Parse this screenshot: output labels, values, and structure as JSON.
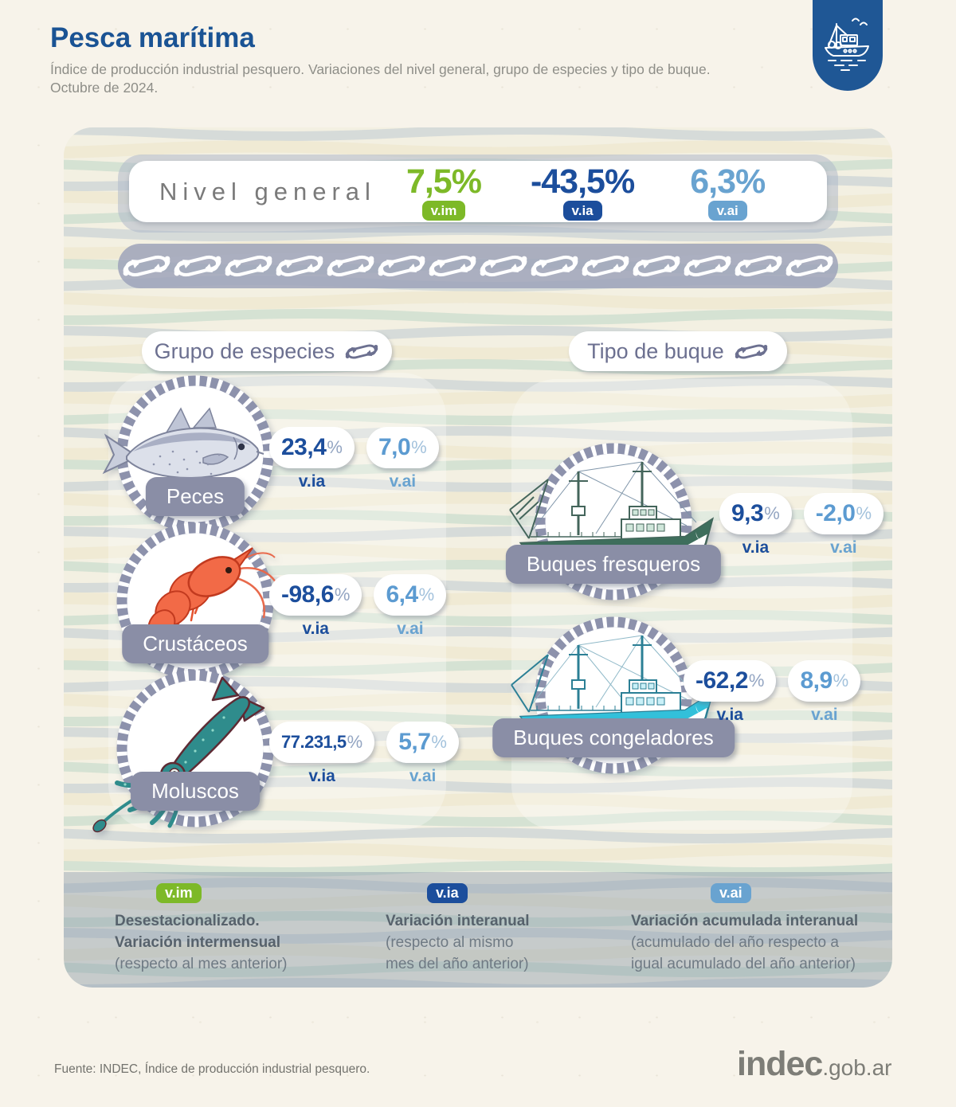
{
  "header": {
    "title": "Pesca marítima",
    "subtitle_line1": "Índice de producción industrial pesquero. Variaciones del nivel general, grupo de especies y tipo de buque.",
    "subtitle_line2": "Octubre de 2024."
  },
  "nivel_general": {
    "label": "Nivel general",
    "values": [
      {
        "value": "7,5%",
        "tag": "v.im"
      },
      {
        "value": "-43,5%",
        "tag": "v.ia"
      },
      {
        "value": "6,3%",
        "tag": "v.ai"
      }
    ]
  },
  "sections": {
    "species": {
      "title": "Grupo de especies"
    },
    "vessels": {
      "title": "Tipo de buque"
    }
  },
  "percent": "%",
  "tags": {
    "vim": "v.im",
    "via": "v.ia",
    "vai": "v.ai"
  },
  "species": {
    "items": [
      {
        "label": "Peces",
        "via": "23,4",
        "vai": "7,0"
      },
      {
        "label": "Crustáceos",
        "via": "-98,6",
        "vai": "6,4"
      },
      {
        "label": "Moluscos",
        "via": "77.231,5",
        "vai": "5,7"
      }
    ]
  },
  "vessels": {
    "items": [
      {
        "label": "Buques fresqueros",
        "via": "9,3",
        "vai": "-2,0"
      },
      {
        "label": "Buques congeladores",
        "via": "-62,2",
        "vai": "8,9"
      }
    ]
  },
  "legend": {
    "entries": [
      {
        "tag": "v.im",
        "b1": "Desestacionalizado.",
        "b2": "Variación intermensual",
        "r1": "(respecto al mes anterior)",
        "r2": ""
      },
      {
        "tag": "v.ia",
        "b1": "Variación interanual",
        "b2": "",
        "r1": "(respecto al mismo",
        "r2": "mes del año anterior)"
      },
      {
        "tag": "v.ai",
        "b1": "Variación acumulada interanual",
        "b2": "",
        "r1": "(acumulado del año respecto a",
        "r2": "igual acumulado del año anterior)"
      }
    ]
  },
  "footer": {
    "source": "Fuente: INDEC, Índice de producción industrial pesquero.",
    "brand": "indec",
    "brand_suffix": ".gob.ar"
  },
  "colors": {
    "brand_blue": "#1A5394",
    "green_vim": "#7DB928",
    "dark_blue_via": "#1C4E9C",
    "light_blue_vai": "#69A3D0",
    "plaque_gray": "#8A8EA6",
    "hook_band": "#9DA3BA",
    "page_bg": "#F7F3EA"
  },
  "chart_data": {
    "type": "table",
    "title": "Índice de producción industrial pesquero. Variaciones del nivel general, grupo de especies y tipo de buque. Octubre de 2024.",
    "units": "variación %",
    "nivel_general": {
      "v_im": 7.5,
      "v_ia": -43.5,
      "v_ai": 6.3
    },
    "grupo_de_especies": [
      {
        "categoria": "Peces",
        "v_ia": 23.4,
        "v_ai": 7.0
      },
      {
        "categoria": "Crustáceos",
        "v_ia": -98.6,
        "v_ai": 6.4
      },
      {
        "categoria": "Moluscos",
        "v_ia": 77231.5,
        "v_ai": 5.7
      }
    ],
    "tipo_de_buque": [
      {
        "categoria": "Buques fresqueros",
        "v_ia": 9.3,
        "v_ai": -2.0
      },
      {
        "categoria": "Buques congeladores",
        "v_ia": -62.2,
        "v_ai": 8.9
      }
    ],
    "legend": {
      "v_im": "Desestacionalizado. Variación intermensual (respecto al mes anterior)",
      "v_ia": "Variación interanual (respecto al mismo mes del año anterior)",
      "v_ai": "Variación acumulada interanual (acumulado del año respecto a igual acumulado del año anterior)"
    }
  }
}
